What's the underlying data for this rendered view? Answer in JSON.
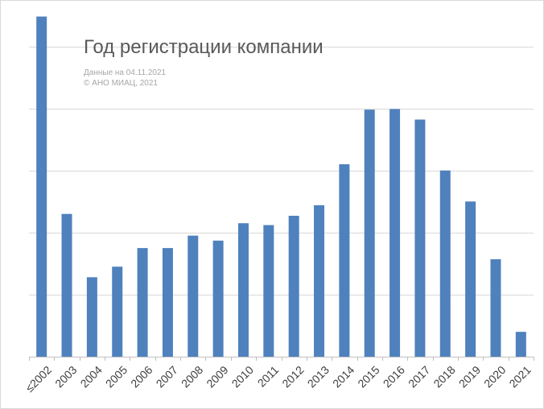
{
  "chart_data": {
    "type": "bar",
    "title": "Год регистрации компании",
    "subtitle_lines": [
      "Данные на 04.11.2021",
      "© АНО МИАЦ, 2021"
    ],
    "xlabel": "",
    "ylabel": "",
    "categories": [
      "≤2002",
      "2003",
      "2004",
      "2005",
      "2006",
      "2007",
      "2008",
      "2009",
      "2010",
      "2011",
      "2012",
      "2013",
      "2014",
      "2015",
      "2016",
      "2017",
      "2018",
      "2019",
      "2020",
      "2021"
    ],
    "values": [
      5.48,
      2.3,
      1.28,
      1.45,
      1.75,
      1.75,
      1.95,
      1.87,
      2.15,
      2.12,
      2.27,
      2.44,
      3.1,
      3.98,
      3.99,
      3.82,
      3.0,
      2.5,
      1.57,
      0.4
    ],
    "ylim": [
      0,
      5.5
    ],
    "y_ticks_labeled": false,
    "grid": true,
    "bar_color": "#4f81bd",
    "grid_color": "#d9d9d9",
    "axis_color": "#bfbfbf"
  }
}
